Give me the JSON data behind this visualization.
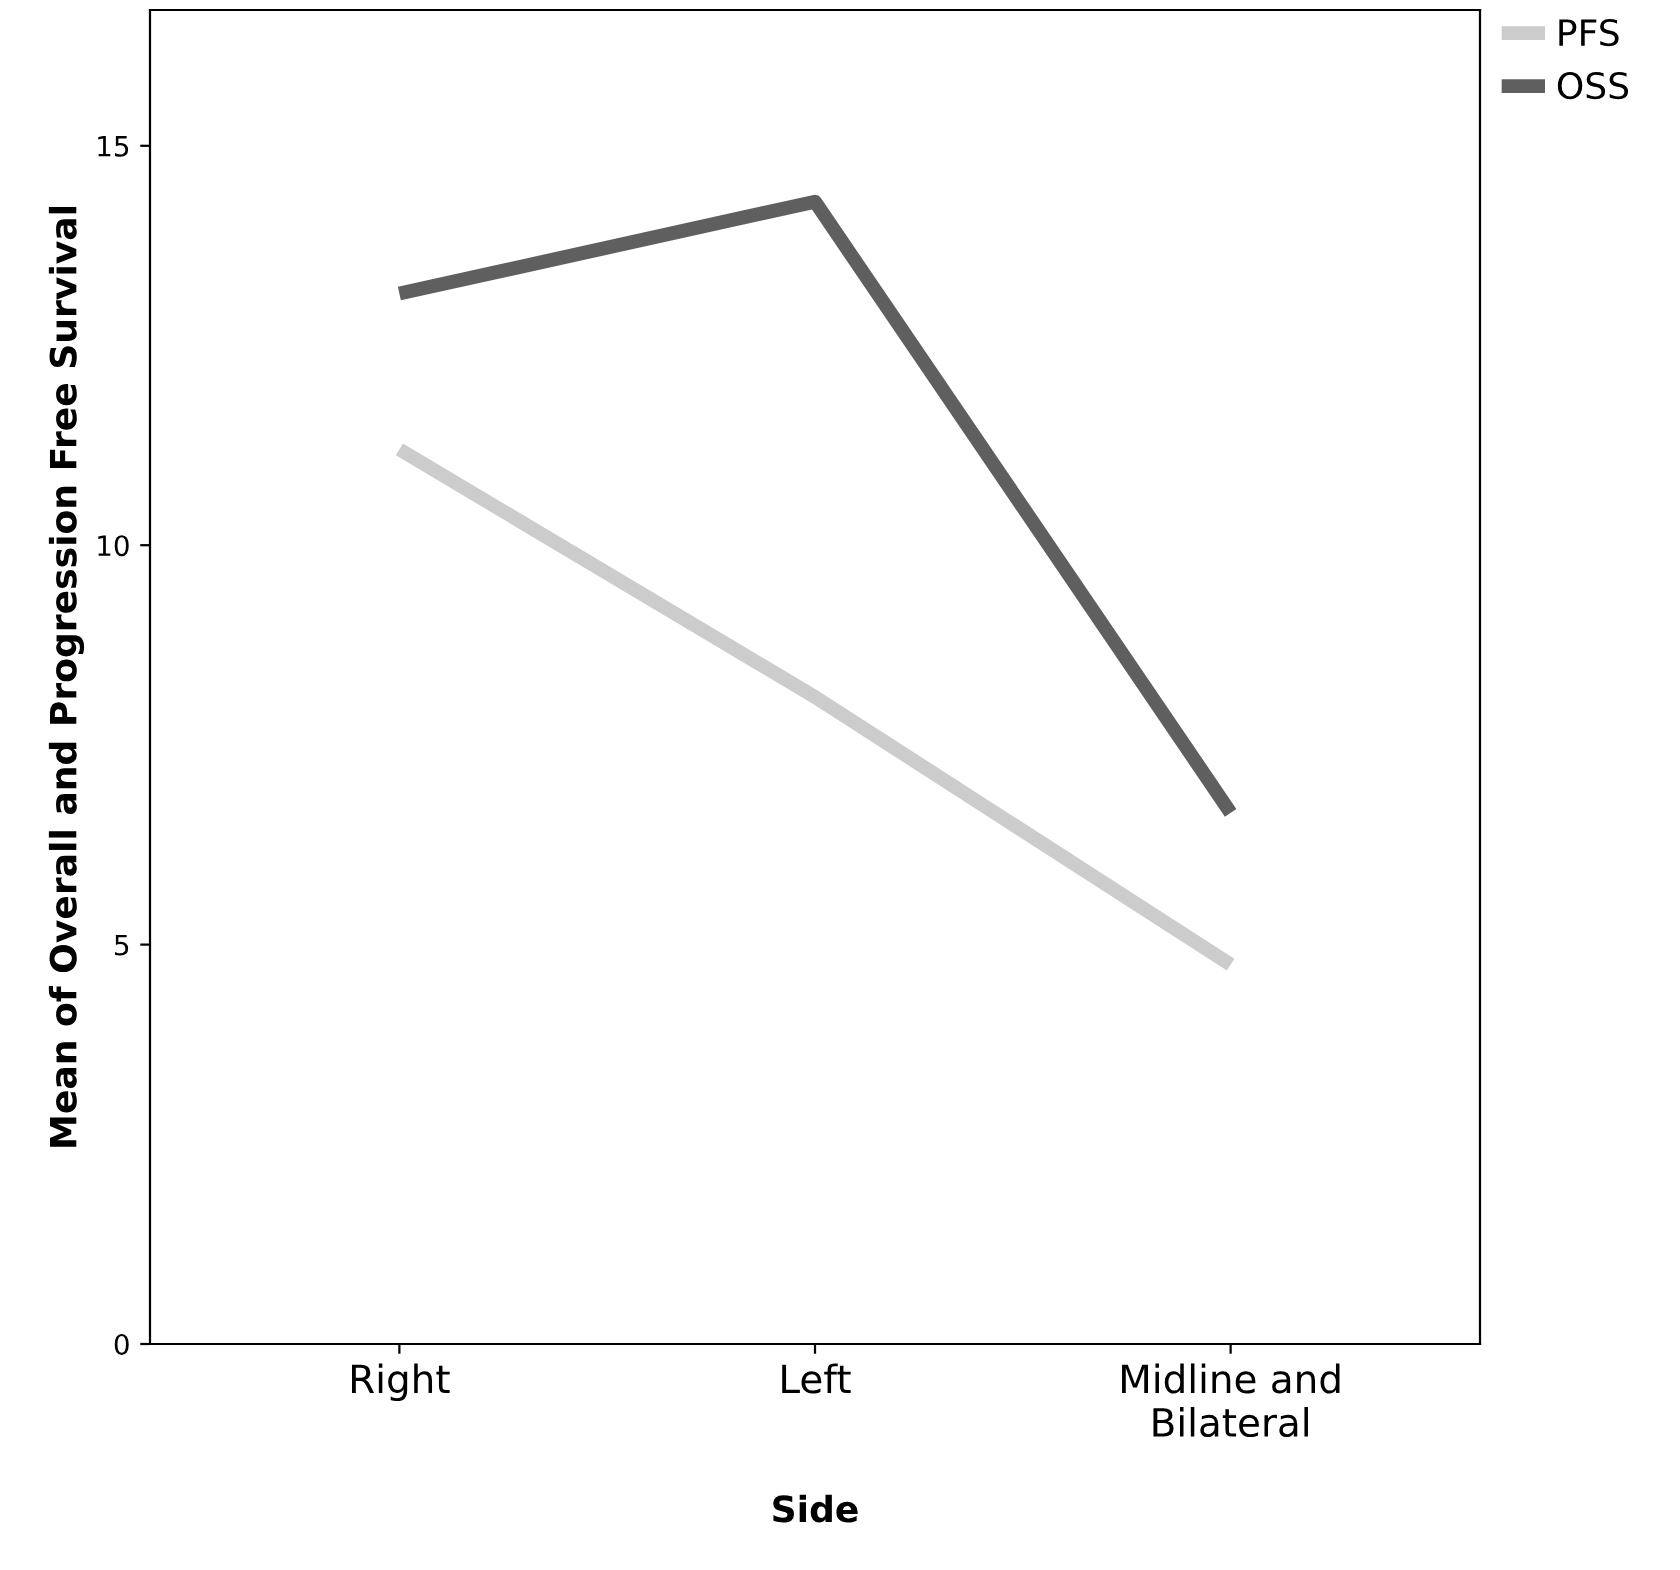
{
  "chart_data": {
    "type": "line",
    "xlabel": "Side",
    "ylabel": "Mean of Overall and Progression Free Survival",
    "categories": [
      "Right",
      "Left",
      "Midline and\nBilateral"
    ],
    "series": [
      {
        "name": "PFS",
        "color": "#cccccc",
        "values": [
          11.2,
          8.1,
          4.75
        ]
      },
      {
        "name": "OSS",
        "color": "#5f5f5f",
        "values": [
          13.15,
          14.3,
          6.65
        ]
      }
    ],
    "ylim": [
      0,
      16.7
    ],
    "yticks": [
      0,
      5,
      10,
      15
    ],
    "grid": false,
    "legend": "top right",
    "marker": "none",
    "line_style": "solid"
  }
}
